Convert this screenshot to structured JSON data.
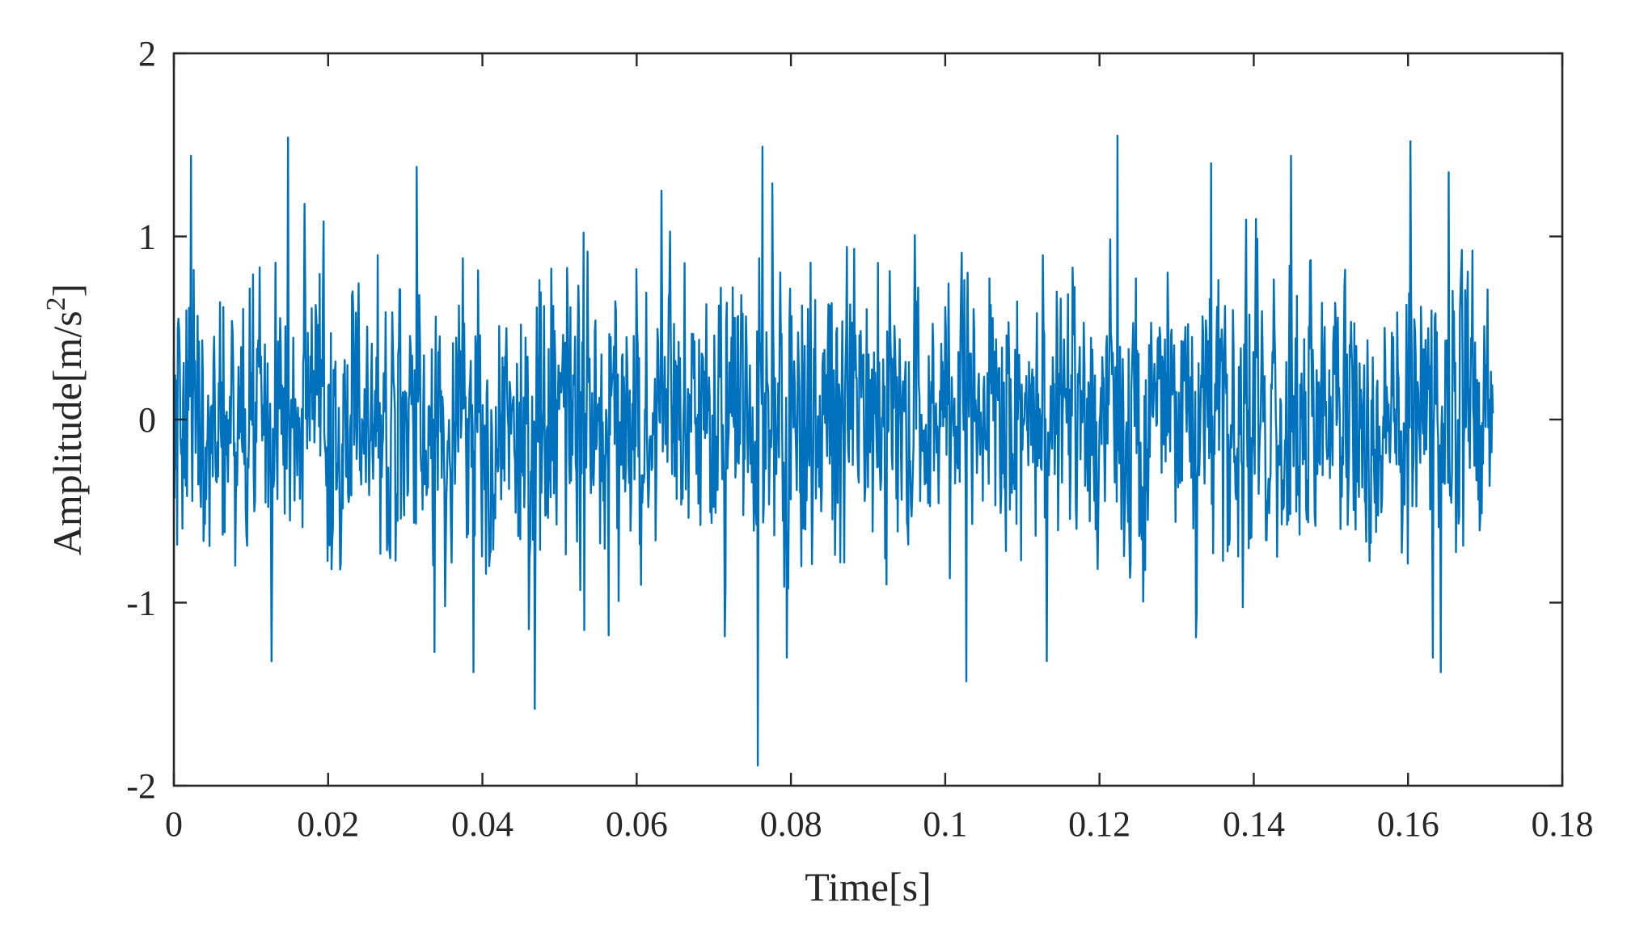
{
  "chart_data": {
    "type": "line",
    "title": "",
    "xlabel": "Time[s]",
    "ylabel": {
      "text": "Amplitude[m/s",
      "superscript": "2",
      "suffix": "]"
    },
    "xlim": [
      0,
      0.18
    ],
    "ylim": [
      -2,
      2
    ],
    "xticks": [
      "0",
      "0.02",
      "0.04",
      "0.06",
      "0.08",
      "0.1",
      "0.12",
      "0.14",
      "0.16",
      "0.18"
    ],
    "yticks": [
      "-2",
      "-1",
      "0",
      "1",
      "2"
    ],
    "grid": false,
    "legend": "none",
    "colors": {
      "series": "#0072BD",
      "axes": "#262626"
    },
    "series": [
      {
        "signal_type": "random vibration",
        "x_start": 0,
        "x_end": 0.171,
        "sample_count": 2000,
        "std": 0.38,
        "peaks": [
          [
            0.0005,
            0.5
          ],
          [
            0.0022,
            1.44
          ],
          [
            0.0148,
            1.54
          ],
          [
            0.0315,
            1.38
          ],
          [
            0.0127,
            -1.32
          ],
          [
            0.0338,
            -1.27
          ],
          [
            0.0388,
            -1.38
          ],
          [
            0.0468,
            -1.58
          ],
          [
            0.0532,
            -1.15
          ],
          [
            0.0757,
            -1.89
          ],
          [
            0.0763,
            1.49
          ],
          [
            0.0776,
            1.29
          ],
          [
            0.0795,
            -1.3
          ],
          [
            0.1027,
            -1.43
          ],
          [
            0.1132,
            -1.32
          ],
          [
            0.1223,
            1.55
          ],
          [
            0.1325,
            -1.19
          ],
          [
            0.1345,
            1.4
          ],
          [
            0.1448,
            1.44
          ],
          [
            0.1603,
            1.52
          ],
          [
            0.1632,
            -1.3
          ],
          [
            0.1642,
            -1.38
          ],
          [
            0.1653,
            1.35
          ],
          [
            0.1703,
            0.71
          ]
        ]
      }
    ]
  }
}
